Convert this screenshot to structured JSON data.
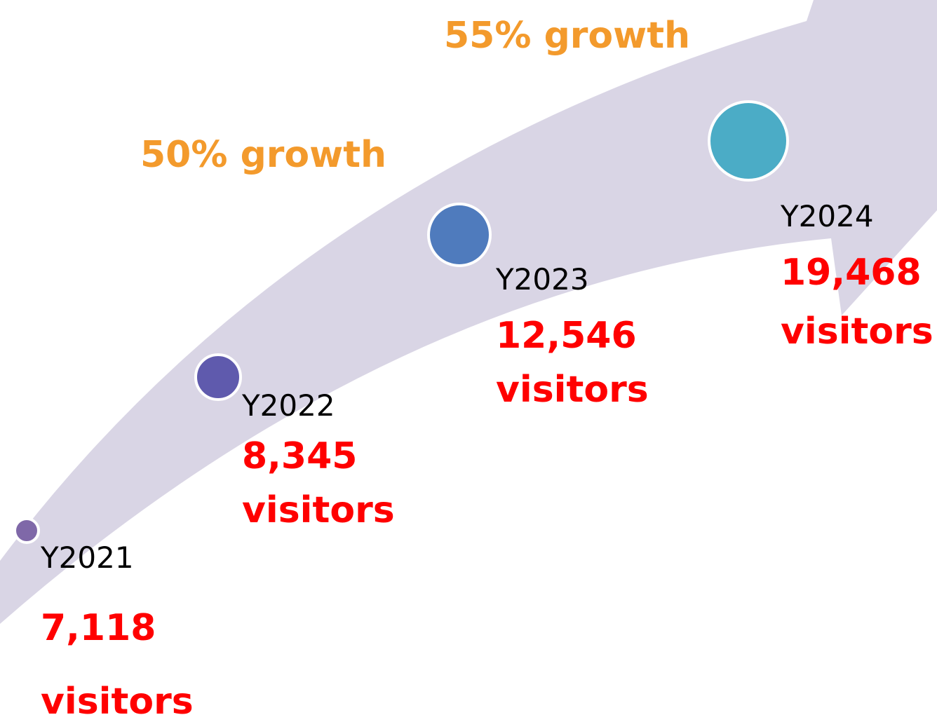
{
  "annotations": [
    "55% growth",
    "50% growth"
  ],
  "nodes": [
    {
      "label": "Y2021",
      "value": "7,118",
      "unit": "visitors"
    },
    {
      "label": "Y2022",
      "value": "8,345",
      "unit": "visitors"
    },
    {
      "label": "Y2023",
      "value": "12,546",
      "unit": "visitors"
    },
    {
      "label": "Y2024",
      "value": "19,468",
      "unit": "visitors"
    }
  ]
}
